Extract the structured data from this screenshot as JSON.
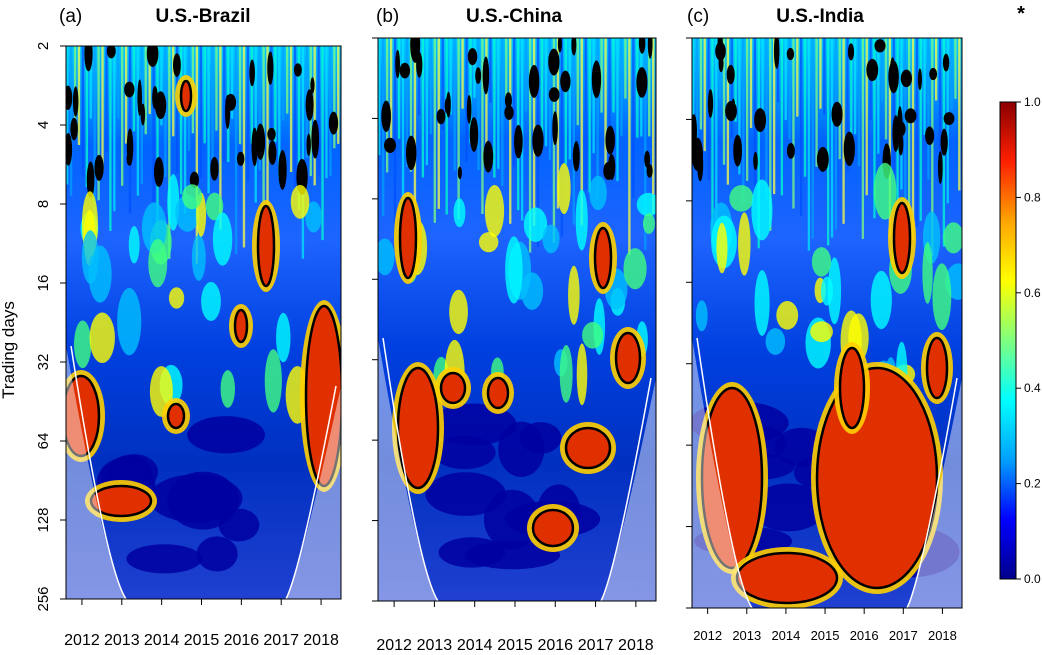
{
  "figure": {
    "ylabel": "Trading days",
    "star": "*"
  },
  "chart_data": [
    {
      "type": "heatmap",
      "panel": "(a)",
      "title": "U.S.-Brazil",
      "ylabel": "Trading days",
      "y_ticks": [
        "2",
        "4",
        "8",
        "16",
        "32",
        "64",
        "128",
        "256"
      ],
      "y_scale": "log2",
      "ylim": [
        2,
        256
      ],
      "x_ticks": [
        "2012",
        "2013",
        "2014",
        "2015",
        "2016",
        "2017",
        "2018"
      ],
      "xlim": [
        2011.6,
        2018.5
      ],
      "value_range": [
        0,
        1
      ]
    },
    {
      "type": "heatmap",
      "panel": "(b)",
      "title": "U.S.-China",
      "y_scale": "log2",
      "ylim": [
        2,
        256
      ],
      "x_ticks": [
        "2012",
        "2013",
        "2014",
        "2015",
        "2016",
        "2017",
        "2018"
      ],
      "xlim": [
        2011.6,
        2018.5
      ],
      "value_range": [
        0,
        1
      ]
    },
    {
      "type": "heatmap",
      "panel": "(c)",
      "title": "U.S.-India",
      "y_scale": "log2",
      "ylim": [
        2,
        256
      ],
      "x_ticks": [
        "2012",
        "2013",
        "2014",
        "2015",
        "2016",
        "2017",
        "2018"
      ],
      "xlim": [
        2011.6,
        2018.5
      ],
      "value_range": [
        0,
        1
      ]
    }
  ],
  "colorbar": {
    "ticks": [
      "0.0",
      "0.2",
      "0.4",
      "0.6",
      "0.8",
      "1.0"
    ],
    "colors": [
      "#00008b",
      "#0000ff",
      "#00a0ff",
      "#00ffff",
      "#7fff7f",
      "#ffff00",
      "#ffa500",
      "#ff2000",
      "#8b0000"
    ]
  }
}
